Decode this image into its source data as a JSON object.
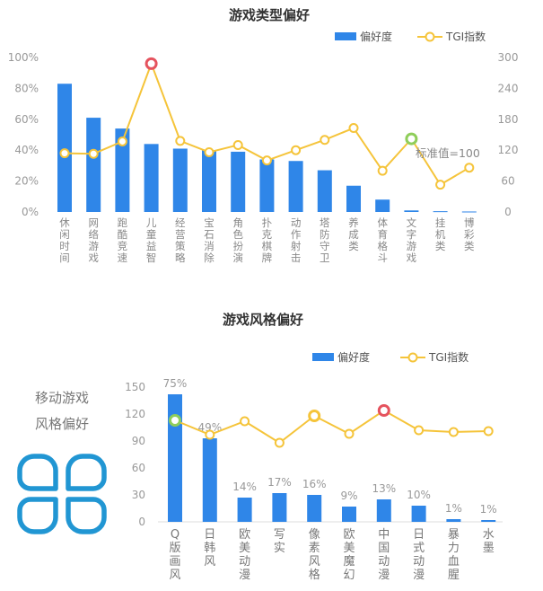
{
  "colors": {
    "bar": "#2f86e8",
    "line": "#f5c43a",
    "highlight": "#e5535e",
    "green": "#8fce5a",
    "icon": "#2196d3"
  },
  "chart_data": [
    {
      "type": "bar",
      "title": "游戏类型偏好",
      "legend": {
        "bar": "偏好度",
        "line": "TGI指数",
        "position": "top-right"
      },
      "categories": [
        "休闲时间",
        "网络游戏",
        "跑酷竞速",
        "儿童益智",
        "经营策略",
        "宝石消除",
        "角色扮演",
        "扑克棋牌",
        "动作射击",
        "塔防守卫",
        "养成类",
        "体育格斗",
        "文字游戏",
        "挂机类",
        "博彩类"
      ],
      "y_left": {
        "ticks": [
          "0%",
          "20%",
          "40%",
          "60%",
          "80%",
          "100%"
        ],
        "ylim": [
          0,
          100
        ]
      },
      "y_right": {
        "ticks": [
          "0",
          "60",
          "120",
          "180",
          "240",
          "300"
        ],
        "ylim": [
          0,
          300
        ]
      },
      "series": [
        {
          "name": "偏好度",
          "type": "bar",
          "values": [
            83,
            61,
            54,
            44,
            41,
            40,
            39,
            34,
            33,
            27,
            17,
            8,
            1,
            0.5,
            0.3
          ]
        },
        {
          "name": "TGI指数",
          "type": "line",
          "values": [
            114,
            113,
            137,
            288,
            138,
            116,
            130,
            100,
            120,
            140,
            163,
            80,
            142,
            53,
            86
          ]
        }
      ],
      "highlight_red_index": 3,
      "highlight_green_index": 12,
      "annotation": "标准值=100"
    },
    {
      "type": "bar",
      "title": "游戏风格偏好",
      "legend": {
        "bar": "偏好度",
        "line": "TGI指数",
        "position": "top-right"
      },
      "categories": [
        "Q版画风",
        "日韩风",
        "欧美动漫",
        "写实",
        "像素风格",
        "欧美魔幻",
        "中国动漫",
        "日式动漫",
        "暴力血腥",
        "水墨"
      ],
      "y_left": {
        "ticks": [
          "0",
          "30",
          "60",
          "90",
          "120",
          "150"
        ],
        "ylim": [
          0,
          150
        ]
      },
      "series": [
        {
          "name": "偏好度",
          "type": "bar",
          "values": [
            142,
            93,
            27,
            32,
            30,
            17,
            25,
            18,
            3,
            2
          ]
        },
        {
          "name": "TGI指数",
          "type": "line",
          "values": [
            113,
            97,
            112,
            88,
            118,
            98,
            124,
            102,
            100,
            101
          ]
        }
      ],
      "value_labels": [
        "75%",
        "49%",
        "14%",
        "17%",
        "16%",
        "9%",
        "13%",
        "10%",
        "1%",
        "1%"
      ],
      "highlight_red_index": 6,
      "highlight_green_index": 0
    }
  ],
  "side_label": {
    "line1": "移动游戏",
    "line2": "风格偏好"
  }
}
